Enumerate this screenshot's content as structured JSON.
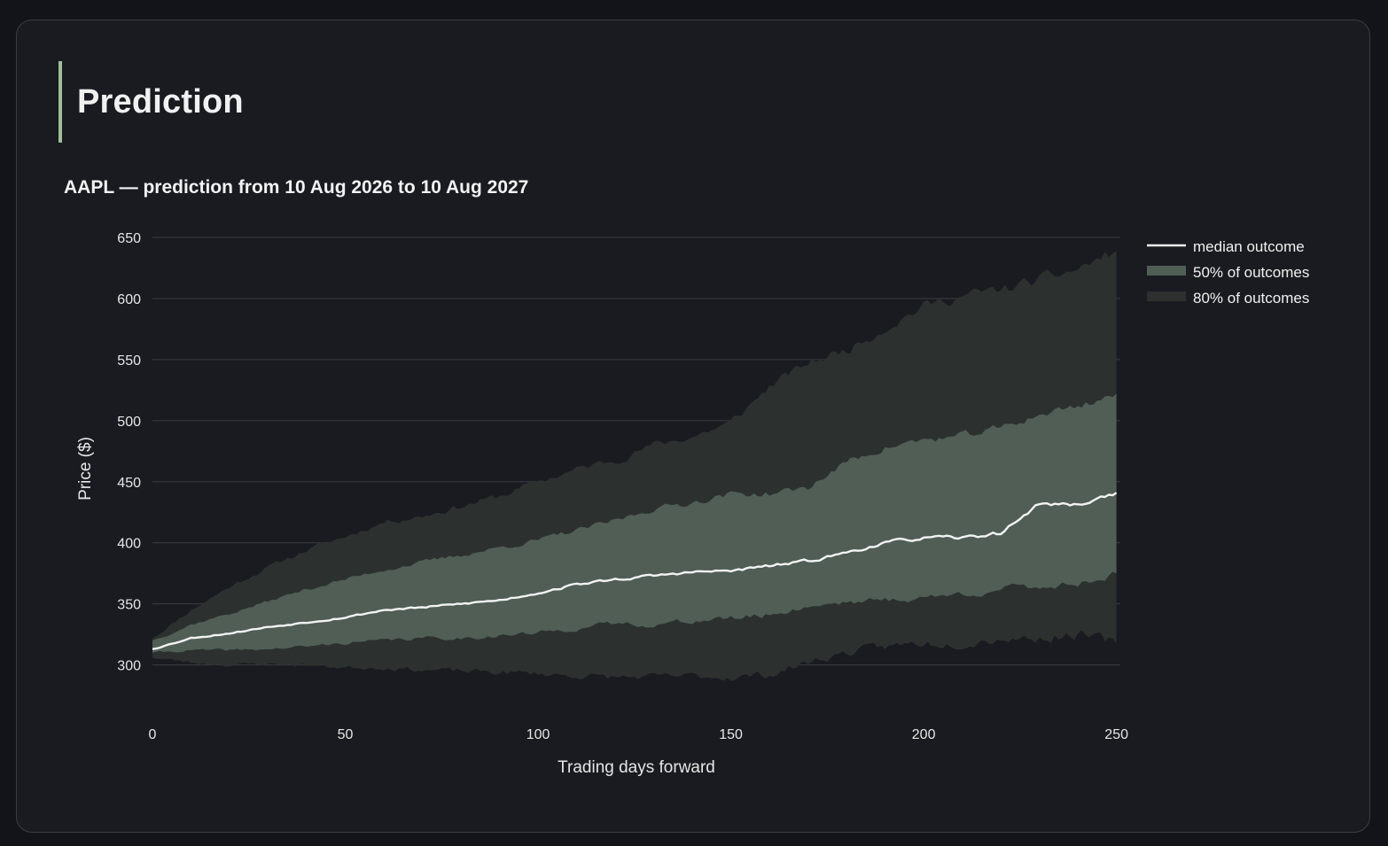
{
  "section": {
    "title": "Prediction"
  },
  "chart_data": {
    "type": "area",
    "title": "AAPL — prediction from 10 Aug 2026 to 10 Aug 2027",
    "xlabel": "Trading days forward",
    "ylabel": "Price ($)",
    "xlim": [
      0,
      251
    ],
    "ylim": [
      270,
      650
    ],
    "x_ticks": [
      0,
      50,
      100,
      150,
      200,
      250
    ],
    "y_ticks": [
      300,
      350,
      400,
      450,
      500,
      550,
      600,
      650
    ],
    "grid": "horizontal",
    "legend_position": "right",
    "colors": {
      "median": "#f3f3f3",
      "band50": "#505e56",
      "band80": "#2c312f",
      "grid": "#3a3d44",
      "axis_text": "#e6e6e6"
    },
    "series": [
      {
        "name": "median outcome",
        "x": [
          0,
          10,
          20,
          30,
          40,
          50,
          60,
          70,
          80,
          90,
          100,
          110,
          120,
          130,
          140,
          150,
          160,
          170,
          180,
          190,
          200,
          210,
          220,
          230,
          240,
          250
        ],
        "y": [
          313,
          322,
          326,
          331,
          335,
          339,
          345,
          347,
          350,
          353,
          359,
          366,
          370,
          373,
          376,
          377,
          381,
          385,
          392,
          400,
          404,
          404,
          408,
          432,
          431,
          441
        ]
      },
      {
        "name": "50% of outcomes",
        "x": [
          0,
          10,
          20,
          30,
          40,
          50,
          60,
          70,
          80,
          90,
          100,
          110,
          120,
          130,
          140,
          150,
          160,
          170,
          180,
          190,
          200,
          210,
          220,
          230,
          240,
          250
        ],
        "upper": [
          320,
          333,
          342,
          352,
          362,
          370,
          378,
          384,
          390,
          396,
          402,
          410,
          418,
          428,
          433,
          440,
          440,
          445,
          466,
          478,
          484,
          487,
          494,
          505,
          512,
          522
        ],
        "lower": [
          310,
          312,
          312,
          313,
          315,
          318,
          320,
          322,
          322,
          324,
          326,
          330,
          334,
          333,
          336,
          338,
          341,
          348,
          352,
          353,
          355,
          358,
          362,
          364,
          367,
          375
        ]
      },
      {
        "name": "80% of outcomes",
        "x": [
          0,
          10,
          20,
          30,
          40,
          50,
          60,
          70,
          80,
          90,
          100,
          110,
          120,
          130,
          140,
          150,
          160,
          170,
          180,
          190,
          200,
          210,
          220,
          230,
          240,
          250
        ],
        "upper": [
          322,
          345,
          364,
          380,
          394,
          405,
          417,
          422,
          430,
          438,
          450,
          460,
          468,
          480,
          487,
          498,
          528,
          547,
          558,
          576,
          594,
          602,
          607,
          615,
          624,
          639
        ],
        "lower": [
          306,
          302,
          300,
          301,
          300,
          298,
          298,
          296,
          295,
          294,
          293,
          291,
          290,
          290,
          291,
          290,
          292,
          302,
          310,
          315,
          318,
          318,
          322,
          322,
          325,
          318
        ]
      }
    ]
  }
}
